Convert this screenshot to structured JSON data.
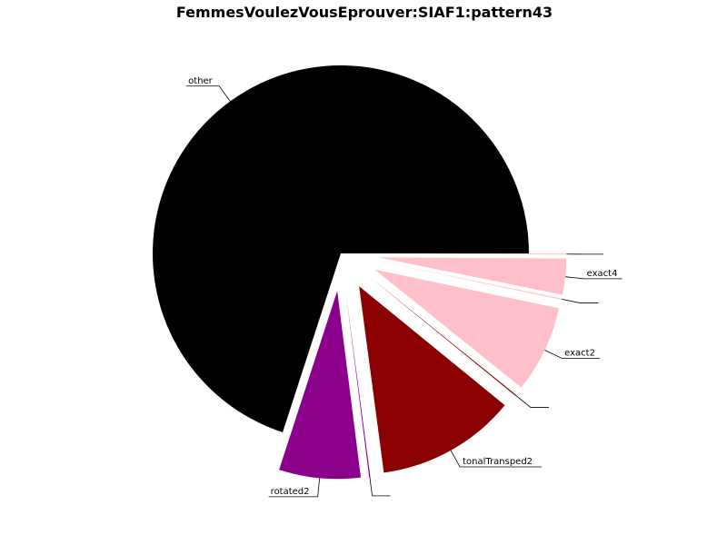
{
  "chart_data": {
    "type": "pie",
    "title": "FemmesVoulezVousEprouver:SIAF1:pattern43",
    "slices": [
      {
        "label": "other",
        "value": 70.0,
        "color": "#000000",
        "exploded": false
      },
      {
        "label": "rotated2",
        "value": 7.0,
        "color": "#8b008b",
        "exploded": true
      },
      {
        "label": "",
        "value": 0.1,
        "color": "#8b008b",
        "exploded": true
      },
      {
        "label": "tonalTransped2",
        "value": 12.0,
        "color": "#8b0000",
        "exploded": true
      },
      {
        "label": "",
        "value": 0.1,
        "color": "#8b0000",
        "exploded": true
      },
      {
        "label": "exact2",
        "value": 7.5,
        "color": "#ffc0cb",
        "exploded": true
      },
      {
        "label": "",
        "value": 0.1,
        "color": "#ffc0cb",
        "exploded": true
      },
      {
        "label": "exact4",
        "value": 3.1,
        "color": "#ffc0cb",
        "exploded": true
      },
      {
        "label": "",
        "value": 0.1,
        "color": "#ffc0cb",
        "exploded": true
      }
    ],
    "start_angle_deg": 0,
    "direction": "counterclockwise",
    "legend": "none"
  }
}
